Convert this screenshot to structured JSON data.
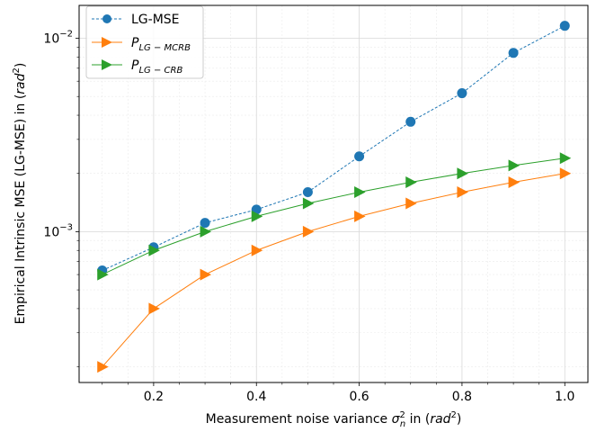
{
  "chart_data": {
    "type": "line",
    "x": [
      0.1,
      0.2,
      0.3,
      0.4,
      0.5,
      0.6,
      0.7,
      0.8,
      0.9,
      1.0
    ],
    "series": [
      {
        "name": "LG-MSE",
        "values": [
          0.00063,
          0.00083,
          0.00111,
          0.0013,
          0.0016,
          0.00245,
          0.0037,
          0.0052,
          0.0084,
          0.0116
        ],
        "color": "#1f77b4",
        "marker": "circle",
        "linestyle": "dashed"
      },
      {
        "name_base": "P",
        "name_sub": "LG − MCRB",
        "values": [
          0.0002,
          0.0004,
          0.0006,
          0.0008,
          0.001,
          0.0012,
          0.0014,
          0.0016,
          0.0018,
          0.002
        ],
        "color": "#ff7f0e",
        "marker": "triangle-right",
        "linestyle": "solid"
      },
      {
        "name_base": "P",
        "name_sub": "LG − CRB",
        "values": [
          0.0006,
          0.0008,
          0.001,
          0.0012,
          0.0014,
          0.0016,
          0.0018,
          0.002,
          0.0022,
          0.0024
        ],
        "color": "#2ca02c",
        "marker": "triangle-right",
        "linestyle": "solid"
      }
    ],
    "xlabel": {
      "prefix": "Measurement noise variance ",
      "sigma": "σ",
      "sup": "2",
      "sub": "n",
      "middle": " in (",
      "unit": "rad",
      "unit_sup": "2",
      "suffix": ")"
    },
    "ylabel": {
      "prefix": "Empirical Intrinsic MSE (LG-MSE) in (",
      "unit": "rad",
      "unit_sup": "2",
      "suffix": ")"
    },
    "xlim": [
      0.055,
      1.045
    ],
    "ylim_log10": [
      -3.78,
      -1.83
    ],
    "yscale": "log",
    "x_ticks": [
      "0.2",
      "0.4",
      "0.6",
      "0.8",
      "1.0"
    ],
    "x_tick_values": [
      0.2,
      0.4,
      0.6,
      0.8,
      1.0
    ],
    "y_major_ticks": [
      {
        "value": 0.001,
        "base": "10",
        "exp": "−3"
      },
      {
        "value": 0.01,
        "base": "10",
        "exp": "−2"
      }
    ],
    "grid": true,
    "legend_position": "top-left"
  }
}
